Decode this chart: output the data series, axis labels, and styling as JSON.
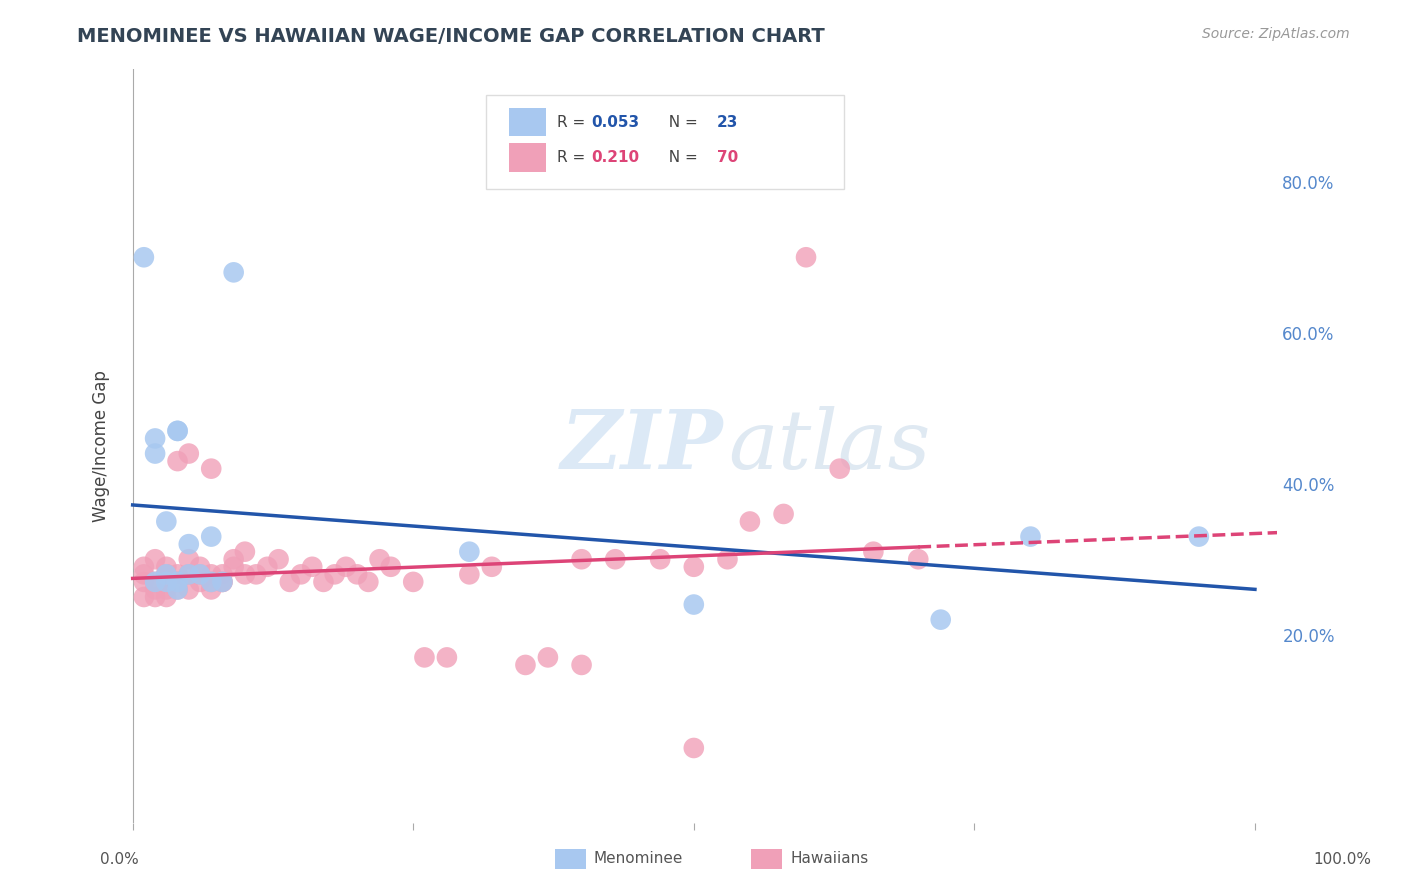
{
  "title": "MENOMINEE VS HAWAIIAN WAGE/INCOME GAP CORRELATION CHART",
  "source": "Source: ZipAtlas.com",
  "ylabel": "Wage/Income Gap",
  "legend1_r": "0.053",
  "legend1_n": "23",
  "legend2_r": "0.210",
  "legend2_n": "70",
  "menominee_color": "#a8c8f0",
  "hawaiian_color": "#f0a0b8",
  "trend_menominee_color": "#2255aa",
  "trend_hawaiian_color": "#dd4477",
  "menominee_x": [
    1,
    2,
    2,
    3,
    3,
    3,
    4,
    4,
    5,
    5,
    6,
    7,
    7,
    8,
    9,
    30,
    50,
    72,
    80,
    95,
    2,
    4,
    4
  ],
  "menominee_y": [
    70,
    46,
    44,
    35,
    28,
    27,
    47,
    47,
    32,
    28,
    28,
    33,
    27,
    27,
    68,
    31,
    24,
    22,
    33,
    33,
    27,
    27,
    26
  ],
  "hawaiian_x": [
    1,
    1,
    1,
    1,
    2,
    2,
    2,
    2,
    3,
    3,
    3,
    3,
    3,
    3,
    3,
    4,
    4,
    4,
    4,
    5,
    5,
    5,
    5,
    6,
    6,
    6,
    7,
    7,
    7,
    7,
    8,
    8,
    8,
    9,
    9,
    10,
    10,
    11,
    12,
    13,
    14,
    15,
    16,
    17,
    18,
    19,
    20,
    21,
    22,
    23,
    25,
    26,
    28,
    30,
    32,
    35,
    37,
    40,
    43,
    47,
    50,
    53,
    55,
    58,
    60,
    63,
    66,
    70,
    50,
    40
  ],
  "hawaiian_y": [
    27,
    28,
    29,
    25,
    26,
    25,
    27,
    30,
    25,
    27,
    27,
    28,
    26,
    28,
    29,
    27,
    28,
    43,
    26,
    26,
    28,
    30,
    44,
    27,
    28,
    29,
    26,
    27,
    28,
    42,
    27,
    28,
    27,
    29,
    30,
    28,
    31,
    28,
    29,
    30,
    27,
    28,
    29,
    27,
    28,
    29,
    28,
    27,
    30,
    29,
    27,
    17,
    17,
    28,
    29,
    16,
    17,
    30,
    30,
    30,
    29,
    30,
    35,
    36,
    70,
    42,
    31,
    30,
    5,
    16
  ],
  "xlim": [
    -1,
    102
  ],
  "ylim": [
    -5,
    95
  ],
  "yticks": [
    20,
    40,
    60,
    80
  ],
  "yticklabels": [
    "20.0%",
    "40.0%",
    "60.0%",
    "80.0%"
  ],
  "xtick_left_label": "0.0%",
  "xtick_right_label": "100.0%",
  "watermark_zip": "ZIP",
  "watermark_atlas": "atlas",
  "background_color": "#ffffff"
}
